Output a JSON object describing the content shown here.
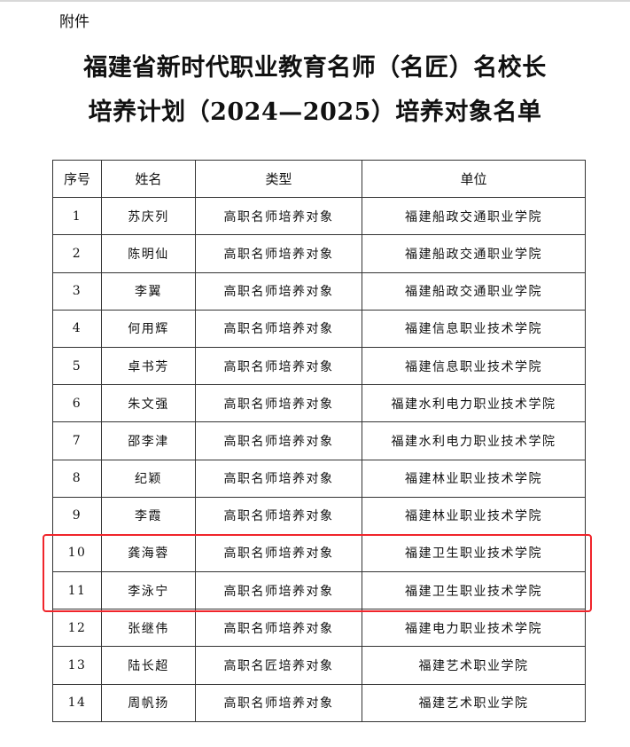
{
  "attachment_label": "附件",
  "title_line1": "福建省新时代职业教育名师（名匠）名校长",
  "title_line2": "培养计划（2024—2025）培养对象名单",
  "table": {
    "headers": [
      "序号",
      "姓名",
      "类型",
      "单位"
    ],
    "rows": [
      [
        "1",
        "苏庆列",
        "高职名师培养对象",
        "福建船政交通职业学院"
      ],
      [
        "2",
        "陈明仙",
        "高职名师培养对象",
        "福建船政交通职业学院"
      ],
      [
        "3",
        "李翼",
        "高职名师培养对象",
        "福建船政交通职业学院"
      ],
      [
        "4",
        "何用辉",
        "高职名师培养对象",
        "福建信息职业技术学院"
      ],
      [
        "5",
        "卓书芳",
        "高职名师培养对象",
        "福建信息职业技术学院"
      ],
      [
        "6",
        "朱文强",
        "高职名师培养对象",
        "福建水利电力职业技术学院"
      ],
      [
        "7",
        "邵李津",
        "高职名师培养对象",
        "福建水利电力职业技术学院"
      ],
      [
        "8",
        "纪颖",
        "高职名师培养对象",
        "福建林业职业技术学院"
      ],
      [
        "9",
        "李霞",
        "高职名师培养对象",
        "福建林业职业技术学院"
      ],
      [
        "10",
        "龚海蓉",
        "高职名师培养对象",
        "福建卫生职业技术学院"
      ],
      [
        "11",
        "李泳宁",
        "高职名师培养对象",
        "福建卫生职业技术学院"
      ],
      [
        "12",
        "张继伟",
        "高职名师培养对象",
        "福建电力职业技术学院"
      ],
      [
        "13",
        "陆长超",
        "高职名匠培养对象",
        "福建艺术职业学院"
      ],
      [
        "14",
        "周帆扬",
        "高职名师培养对象",
        "福建艺术职业学院"
      ]
    ],
    "highlighted_rows": [
      "10",
      "11"
    ],
    "highlight_color": "#f0252b"
  }
}
